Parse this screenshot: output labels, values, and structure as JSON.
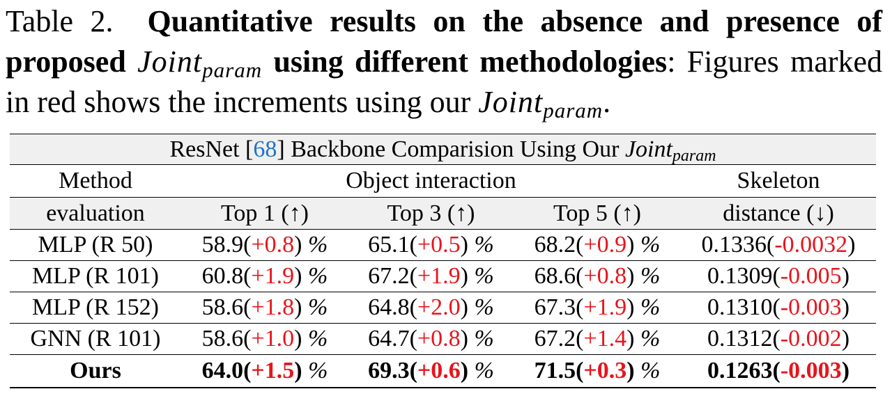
{
  "caption": {
    "label": "Table 2.",
    "bold_text_1": "Quantitative results on the absence and presence of proposed",
    "math_base": "Joint",
    "math_sub": "param",
    "bold_text_2": "using different methodologies",
    "colon": ":",
    "rest_text": "Figures marked in red shows the increments using our",
    "period": "."
  },
  "table": {
    "title_prefix": "ResNet [",
    "title_ref": "68",
    "title_suffix": "] Backbone Comparision Using Our",
    "header_row1": {
      "method": "Method",
      "object_interaction": "Object interaction",
      "skeleton": "Skeleton"
    },
    "header_row2": {
      "evaluation": "evaluation",
      "top1": "Top 1 (↑)",
      "top3": "Top 3 (↑)",
      "top5": "Top 5 (↑)",
      "distance": "distance (↓)"
    },
    "pct_symbol": "%",
    "rows": [
      {
        "method": "MLP (R 50)",
        "top1": {
          "v": "58.9",
          "d": "+0.8"
        },
        "top3": {
          "v": "65.1",
          "d": "+0.5"
        },
        "top5": {
          "v": "68.2",
          "d": "+0.9"
        },
        "skel": {
          "v": "0.1336",
          "d": "-0.0032"
        }
      },
      {
        "method": "MLP (R 101)",
        "top1": {
          "v": "60.8",
          "d": "+1.9"
        },
        "top3": {
          "v": "67.2",
          "d": "+1.9"
        },
        "top5": {
          "v": "68.6",
          "d": "+0.8"
        },
        "skel": {
          "v": "0.1309",
          "d": "-0.005"
        }
      },
      {
        "method": "MLP (R 152)",
        "top1": {
          "v": "58.6",
          "d": "+1.8"
        },
        "top3": {
          "v": "64.8",
          "d": "+2.0"
        },
        "top5": {
          "v": "67.3",
          "d": "+1.9"
        },
        "skel": {
          "v": "0.1310",
          "d": "-0.003"
        }
      },
      {
        "method": "GNN (R 101)",
        "top1": {
          "v": "58.6",
          "d": "+1.0"
        },
        "top3": {
          "v": "64.7",
          "d": "+0.8"
        },
        "top5": {
          "v": "67.2",
          "d": "+1.4"
        },
        "skel": {
          "v": "0.1312",
          "d": "-0.002"
        }
      },
      {
        "method": "Ours",
        "top1": {
          "v": "64.0",
          "d": "+1.5"
        },
        "top3": {
          "v": "69.3",
          "d": "+0.6"
        },
        "top5": {
          "v": "71.5",
          "d": "+0.3"
        },
        "skel": {
          "v": "0.1263",
          "d": "-0.003"
        }
      }
    ]
  },
  "colors": {
    "increment_red": "#e8141b",
    "citation_blue": "#1f73c4",
    "header_gray": "#f0f0f0"
  }
}
